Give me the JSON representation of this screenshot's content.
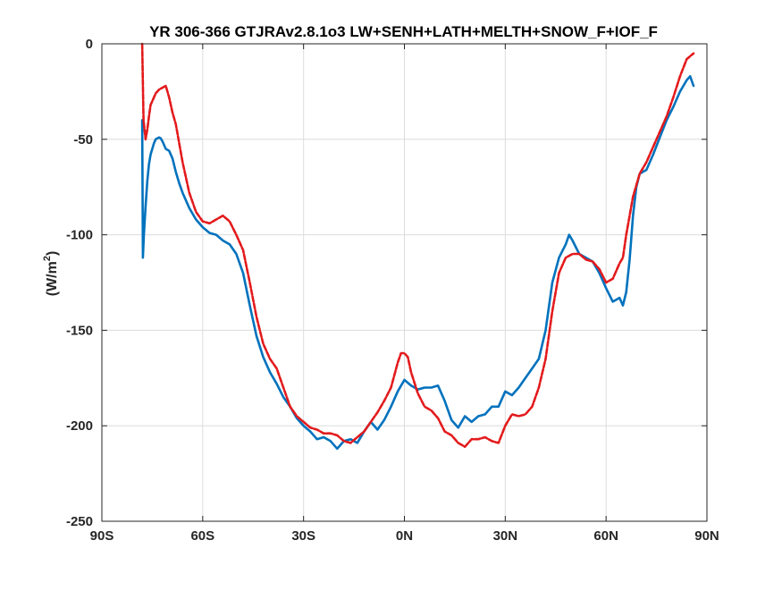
{
  "chart_data": {
    "type": "line",
    "title": "YR 306-366 GTJRAv2.8.1o3 LW+SENH+LATH+MELTH+SNOW_F+IOF_F",
    "xlabel": "",
    "ylabel_base": "(W/m",
    "ylabel_sup": "2",
    "ylabel_end": ")",
    "xlim": [
      -90,
      90
    ],
    "ylim": [
      -250,
      0
    ],
    "xticks": [
      {
        "value": -90,
        "label": "90S"
      },
      {
        "value": -60,
        "label": "60S"
      },
      {
        "value": -30,
        "label": "30S"
      },
      {
        "value": 0,
        "label": "0N"
      },
      {
        "value": 30,
        "label": "30N"
      },
      {
        "value": 60,
        "label": "60N"
      },
      {
        "value": 90,
        "label": "90N"
      }
    ],
    "yticks": [
      {
        "value": 0,
        "label": "0"
      },
      {
        "value": -50,
        "label": "-50"
      },
      {
        "value": -100,
        "label": "-100"
      },
      {
        "value": -150,
        "label": "-150"
      },
      {
        "value": -200,
        "label": "-200"
      },
      {
        "value": -250,
        "label": "-250"
      }
    ],
    "grid": true,
    "series": [
      {
        "color": "#0072BD",
        "dash": "solid",
        "x": [
          -78,
          -77.8,
          -77.5,
          -77,
          -76.5,
          -76,
          -75.5,
          -75,
          -74.5,
          -74,
          -73.5,
          -73,
          -72.5,
          -72,
          -71,
          -70,
          -69,
          -68,
          -67,
          -66,
          -64,
          -62,
          -60,
          -58,
          -56,
          -54,
          -52,
          -50,
          -48,
          -46,
          -44,
          -42,
          -40,
          -38,
          -36,
          -34,
          -32,
          -30,
          -28,
          -26,
          -24,
          -22,
          -20,
          -18,
          -16,
          -14,
          -12,
          -10,
          -8,
          -6,
          -4,
          -2,
          0,
          2,
          4,
          6,
          8,
          10,
          12,
          14,
          16,
          18,
          20,
          22,
          24,
          26,
          28,
          30,
          32,
          34,
          36,
          38,
          40,
          42,
          44,
          46,
          48,
          49,
          50,
          52,
          54,
          56,
          58,
          60,
          62,
          64,
          65,
          66,
          67,
          68,
          69,
          70,
          72,
          74,
          76,
          78,
          80,
          82,
          84,
          85,
          86
        ],
        "y": [
          -40,
          -112,
          -100,
          -85,
          -72,
          -63,
          -58,
          -55,
          -52,
          -50,
          -49.5,
          -49,
          -49.5,
          -51,
          -55,
          -56,
          -60,
          -67,
          -73,
          -78,
          -86,
          -92,
          -96,
          -99,
          -100,
          -103,
          -105,
          -110,
          -120,
          -137,
          -153,
          -164,
          -172,
          -178,
          -185,
          -190,
          -196,
          -200,
          -203,
          -207,
          -206,
          -208,
          -212,
          -208,
          -207,
          -209,
          -203,
          -198,
          -202,
          -197,
          -190,
          -182,
          -176,
          -179,
          -181,
          -180,
          -180,
          -179,
          -187,
          -197,
          -201,
          -195,
          -198,
          -195,
          -194,
          -190,
          -190,
          -182,
          -184,
          -180,
          -175,
          -170,
          -165,
          -150,
          -125,
          -112,
          -105,
          -100,
          -103,
          -110,
          -112,
          -114,
          -120,
          -128,
          -135,
          -133,
          -137,
          -130,
          -113,
          -90,
          -75,
          -68,
          -66,
          -58,
          -49,
          -40,
          -33,
          -25,
          -19,
          -17,
          -22
        ]
      },
      {
        "color": "#E31A1C",
        "dash": "6,2",
        "x": [
          -78,
          -77.6,
          -77,
          -76.5,
          -76,
          -75.5,
          -75,
          -74,
          -73,
          -72,
          -71,
          -70,
          -69,
          -68,
          -67,
          -66,
          -64,
          -62,
          -60,
          -58,
          -56,
          -54,
          -52,
          -50,
          -48,
          -46,
          -44,
          -42,
          -40,
          -38,
          -36,
          -34,
          -32,
          -30,
          -28,
          -26,
          -24,
          -22,
          -20,
          -18,
          -16,
          -14,
          -12,
          -10,
          -8,
          -6,
          -4,
          -2,
          -1,
          0,
          1,
          2,
          4,
          6,
          8,
          10,
          12,
          14,
          16,
          18,
          20,
          22,
          24,
          26,
          28,
          30,
          32,
          34,
          36,
          38,
          40,
          42,
          44,
          46,
          48,
          50,
          52,
          54,
          56,
          58,
          60,
          62,
          64,
          65,
          66,
          68,
          70,
          72,
          74,
          76,
          78,
          80,
          82,
          84,
          86
        ],
        "y": [
          0,
          -40,
          -50,
          -45,
          -38,
          -32,
          -30,
          -26,
          -24,
          -23,
          -22,
          -28,
          -36,
          -42,
          -52,
          -62,
          -78,
          -88,
          -93,
          -94,
          -92,
          -90,
          -93,
          -100,
          -108,
          -125,
          -143,
          -157,
          -165,
          -170,
          -180,
          -190,
          -195,
          -198,
          -201,
          -202,
          -204,
          -204,
          -205,
          -208,
          -209,
          -206,
          -203,
          -198,
          -193,
          -187,
          -180,
          -167,
          -162,
          -162,
          -164,
          -172,
          -183,
          -190,
          -192,
          -196,
          -203,
          -205,
          -209,
          -211,
          -207,
          -207,
          -206,
          -208,
          -209,
          -200,
          -194,
          -195,
          -194,
          -190,
          -180,
          -165,
          -140,
          -120,
          -112,
          -110,
          -110,
          -113,
          -114,
          -118,
          -125,
          -123,
          -115,
          -112,
          -100,
          -80,
          -68,
          -62,
          -54,
          -46,
          -38,
          -28,
          -17,
          -8,
          -5
        ]
      }
    ]
  }
}
